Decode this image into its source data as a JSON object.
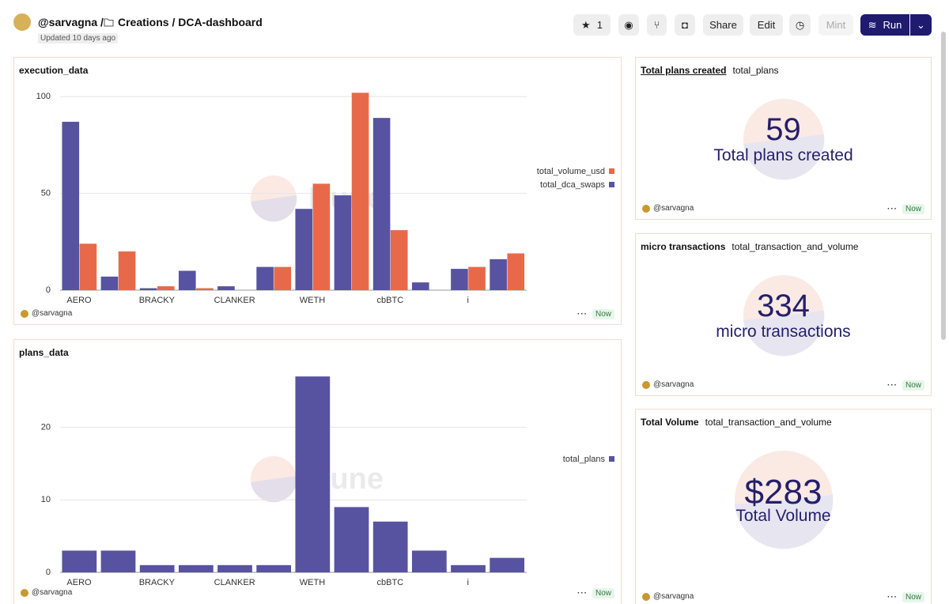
{
  "header": {
    "user": "@sarvagna /",
    "path": "Creations / DCA-dashboard",
    "updated": "Updated 10 days ago",
    "buttons": {
      "star": "1",
      "share": "Share",
      "edit": "Edit",
      "mint": "Mint",
      "run": "Run"
    }
  },
  "chart_data": [
    {
      "type": "bar",
      "title": "execution_data",
      "watermark": "Dune",
      "categories": [
        "AERO",
        null,
        "BRACKY",
        null,
        "CLANKER",
        null,
        "WETH",
        null,
        "cbBTC",
        null,
        "i",
        null
      ],
      "series": [
        {
          "name": "total_dca_swaps",
          "color": "#5753a0",
          "values": [
            87,
            7,
            1,
            10,
            2,
            12,
            42,
            49,
            89,
            4,
            11,
            16
          ]
        },
        {
          "name": "total_volume_usd",
          "color": "#e8694a",
          "values": [
            24,
            20,
            2,
            1,
            0,
            12,
            55,
            102,
            31,
            0,
            12,
            19
          ]
        }
      ],
      "ylim": [
        0,
        105
      ],
      "yticks": [
        0,
        50,
        100
      ],
      "grid": true,
      "legend": "right",
      "author": "@sarvagna",
      "status": "Now"
    },
    {
      "type": "bar",
      "title": "plans_data",
      "watermark": "Dune",
      "categories": [
        "AERO",
        null,
        "BRACKY",
        null,
        "CLANKER",
        null,
        "WETH",
        null,
        "cbBTC",
        null,
        "i",
        null
      ],
      "series": [
        {
          "name": "total_plans",
          "color": "#5753a0",
          "values": [
            3,
            3,
            1,
            1,
            1,
            1,
            27,
            9,
            7,
            3,
            1,
            2
          ]
        }
      ],
      "ylim": [
        0,
        28
      ],
      "yticks": [
        0,
        10,
        20
      ],
      "grid": true,
      "legend": "right",
      "author": "@sarvagna",
      "status": "Now"
    }
  ],
  "counters": [
    {
      "title": "Total plans created",
      "query": "total_plans",
      "value": 59,
      "label": "Total plans created",
      "author": "@sarvagna",
      "status": "Now"
    },
    {
      "title": "micro transactions",
      "query": "total_transaction_and_volume",
      "value": 334,
      "label": "micro transactions",
      "author": "@sarvagna",
      "status": "Now"
    },
    {
      "title": "Total Volume",
      "query": "total_transaction_and_volume",
      "value": "$283",
      "label": "Total Volume",
      "author": "@sarvagna",
      "status": "Now"
    }
  ]
}
